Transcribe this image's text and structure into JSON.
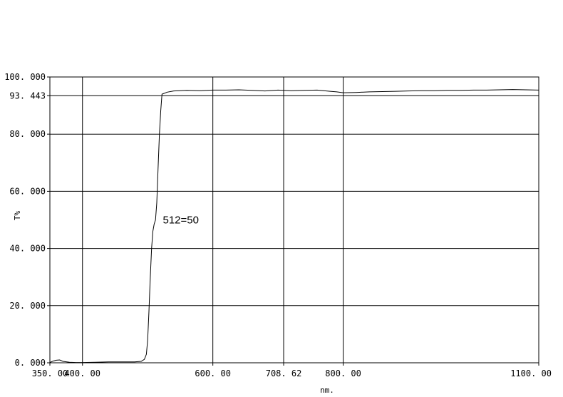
{
  "chart_data": {
    "type": "line",
    "title": "",
    "xlabel": "nm.",
    "ylabel": "T%",
    "xlim": [
      350,
      1100
    ],
    "ylim": [
      0,
      100
    ],
    "grid": true,
    "legend": "none",
    "line_color": "#000000",
    "x_ticks": [
      {
        "value": 350,
        "label": "350. 00"
      },
      {
        "value": 400,
        "label": "400. 00"
      },
      {
        "value": 600,
        "label": "600. 00"
      },
      {
        "value": 708.62,
        "label": "708. 62"
      },
      {
        "value": 800,
        "label": "800. 00"
      },
      {
        "value": 1100,
        "label": "1100. 00"
      }
    ],
    "y_ticks": [
      {
        "value": 0,
        "label": "0. 000"
      },
      {
        "value": 20,
        "label": "20. 000"
      },
      {
        "value": 40,
        "label": "40. 000"
      },
      {
        "value": 60,
        "label": "60. 000"
      },
      {
        "value": 80,
        "label": "80. 000"
      },
      {
        "value": 93.443,
        "label": "93. 443"
      },
      {
        "value": 100,
        "label": "100. 000"
      }
    ],
    "annotations": [
      {
        "text": "512=50",
        "x": 520,
        "y": 50
      }
    ],
    "series": [
      {
        "x": [
          350,
          355,
          360,
          365,
          370,
          380,
          390,
          400,
          420,
          440,
          460,
          480,
          490,
          495,
          498,
          500,
          502,
          504,
          506,
          508,
          510,
          512,
          514,
          516,
          518,
          520,
          522,
          530,
          540,
          560,
          580,
          600,
          620,
          640,
          660,
          680,
          700,
          720,
          740,
          760,
          780,
          790,
          800,
          820,
          840,
          860,
          880,
          900,
          920,
          940,
          960,
          980,
          1000,
          1020,
          1040,
          1060,
          1080,
          1100
        ],
        "y": [
          0.1,
          0.6,
          0.9,
          1.0,
          0.5,
          0.2,
          0.1,
          0.1,
          0.2,
          0.3,
          0.3,
          0.3,
          0.5,
          1.2,
          3.0,
          8.0,
          18.0,
          30.0,
          40.0,
          46.0,
          48.5,
          50.0,
          56.0,
          68.0,
          80.0,
          88.0,
          94.0,
          94.7,
          95.1,
          95.3,
          95.2,
          95.4,
          95.4,
          95.5,
          95.3,
          95.1,
          95.4,
          95.2,
          95.3,
          95.4,
          95.0,
          94.8,
          94.5,
          94.6,
          94.8,
          94.9,
          95.0,
          95.1,
          95.2,
          95.2,
          95.3,
          95.3,
          95.4,
          95.4,
          95.5,
          95.6,
          95.5,
          95.4
        ]
      }
    ]
  }
}
